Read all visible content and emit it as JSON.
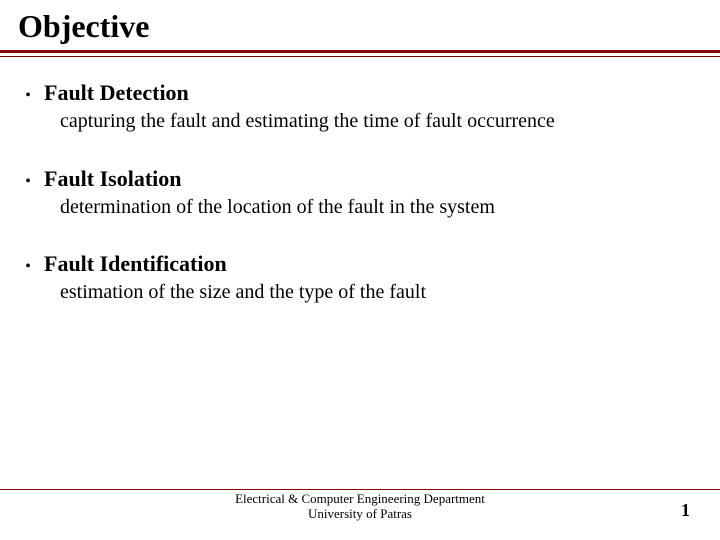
{
  "title": "Objective",
  "bullets": [
    {
      "head": "Fault Detection",
      "body": "capturing the fault and estimating the time of fault occurrence"
    },
    {
      "head": "Fault Isolation",
      "body": "determination of the location of the fault in the system"
    },
    {
      "head": "Fault Identification",
      "body": "estimation of the size and the type of the fault"
    }
  ],
  "footer": {
    "dept": "Electrical & Computer Engineering Department",
    "univ": "University of Patras"
  },
  "page": "1",
  "colors": {
    "rule": "#8b0000",
    "text": "#000000",
    "background": "#ffffff"
  },
  "typography": {
    "title_fontsize": 32,
    "bullet_head_fontsize": 22,
    "bullet_body_fontsize": 20,
    "footer_fontsize": 13,
    "page_fontsize": 18
  }
}
